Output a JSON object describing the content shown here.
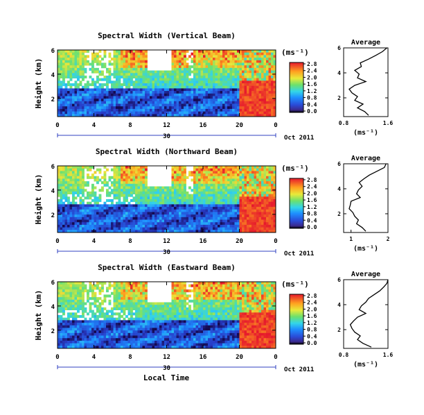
{
  "figure": {
    "x_axis_label": "Local Time",
    "date_label": "Oct 2011",
    "day_label": "30",
    "colorbar_unit": "(ms⁻¹)",
    "profile_title": "Average",
    "profile_xlabel": "(ms⁻¹)",
    "y_label": "Height (km)"
  },
  "chart_data": [
    {
      "type": "heatmap",
      "title": "Spectral Width (Vertical Beam)",
      "ylabel": "Height (km)",
      "xlabel": "Local Time",
      "xticks": [
        "0",
        "4",
        "8",
        "12",
        "16",
        "20",
        "0"
      ],
      "yticks": [
        "2",
        "4",
        "6"
      ],
      "ylim": [
        0.5,
        6
      ],
      "xlim": [
        0,
        24
      ],
      "colorbar": {
        "label": "(ms⁻¹)",
        "ticks": [
          "0.0",
          "0.4",
          "0.8",
          "1.2",
          "1.6",
          "2.0",
          "2.4",
          "2.8"
        ]
      },
      "profile": {
        "title": "Average",
        "xlabel": "(ms⁻¹)",
        "xticks": [
          "0.8",
          "1.6"
        ],
        "xlim": [
          0.8,
          1.6
        ],
        "yticks": [
          "2",
          "4",
          "6"
        ],
        "heights": [
          0.6,
          0.9,
          1.2,
          1.5,
          1.8,
          2.1,
          2.4,
          2.7,
          3.0,
          3.3,
          3.6,
          3.9,
          4.2,
          4.5,
          4.8,
          5.1,
          5.4,
          5.7,
          6.0
        ],
        "values": [
          1.25,
          1.18,
          1.05,
          1.15,
          1.0,
          1.05,
          0.95,
          0.9,
          1.0,
          1.2,
          1.05,
          1.08,
          1.0,
          1.12,
          1.1,
          1.25,
          1.38,
          1.5,
          1.58
        ]
      }
    },
    {
      "type": "heatmap",
      "title": "Spectral Width (Northward Beam)",
      "ylabel": "Height (km)",
      "xticks": [
        "0",
        "4",
        "8",
        "12",
        "16",
        "20",
        "0"
      ],
      "yticks": [
        "2",
        "4",
        "6"
      ],
      "ylim": [
        0.5,
        6
      ],
      "xlim": [
        0,
        24
      ],
      "colorbar": {
        "label": "(ms⁻¹)",
        "ticks": [
          "0.0",
          "0.4",
          "0.8",
          "1.2",
          "1.6",
          "2.0",
          "2.4",
          "2.8"
        ]
      },
      "profile": {
        "title": "Average",
        "xlabel": "(ms⁻¹)",
        "xticks": [
          "1",
          "2"
        ],
        "xlim": [
          0.8,
          2.0
        ],
        "yticks": [
          "2",
          "4",
          "6"
        ],
        "heights": [
          0.6,
          0.9,
          1.2,
          1.5,
          1.8,
          2.1,
          2.4,
          2.7,
          3.0,
          3.3,
          3.6,
          3.9,
          4.2,
          4.5,
          4.8,
          5.1,
          5.4,
          5.7,
          6.0
        ],
        "values": [
          1.4,
          1.3,
          1.15,
          1.2,
          1.1,
          1.05,
          0.95,
          0.98,
          1.0,
          1.25,
          1.15,
          1.2,
          1.3,
          1.22,
          1.35,
          1.5,
          1.7,
          1.9,
          1.95
        ]
      }
    },
    {
      "type": "heatmap",
      "title": "Spectral Width (Eastward Beam)",
      "ylabel": "Height (km)",
      "xlabel": "Local Time",
      "xticks": [
        "0",
        "4",
        "8",
        "12",
        "16",
        "20",
        "0"
      ],
      "yticks": [
        "2",
        "4",
        "6"
      ],
      "ylim": [
        0.5,
        6
      ],
      "xlim": [
        0,
        24
      ],
      "colorbar": {
        "label": "(ms⁻¹)",
        "ticks": [
          "0.0",
          "0.4",
          "0.8",
          "1.2",
          "1.6",
          "2.0",
          "2.4",
          "2.8"
        ]
      },
      "profile": {
        "title": "Average",
        "xlabel": "(ms⁻¹)",
        "xticks": [
          "0.8",
          "1.6"
        ],
        "xlim": [
          0.8,
          1.6
        ],
        "yticks": [
          "2",
          "4",
          "6"
        ],
        "heights": [
          0.6,
          0.9,
          1.2,
          1.5,
          1.8,
          2.1,
          2.4,
          2.7,
          3.0,
          3.3,
          3.6,
          3.9,
          4.2,
          4.5,
          4.8,
          5.1,
          5.4,
          5.7,
          6.0
        ],
        "values": [
          1.3,
          1.15,
          1.05,
          1.1,
          1.0,
          0.95,
          0.92,
          0.98,
          1.05,
          1.2,
          1.08,
          1.12,
          1.2,
          1.25,
          1.35,
          1.45,
          1.52,
          1.58,
          1.6
        ]
      }
    }
  ]
}
